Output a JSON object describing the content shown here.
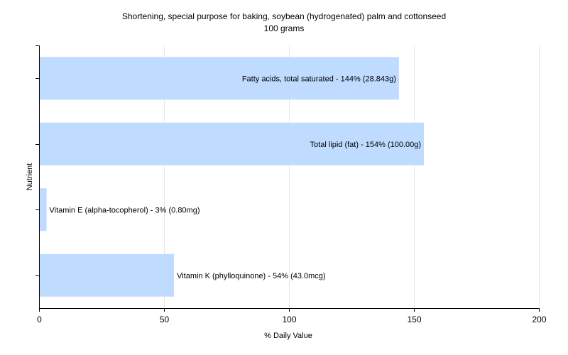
{
  "chart_data": {
    "type": "bar",
    "orientation": "horizontal",
    "title": "Shortening, special purpose for baking, soybean (hydrogenated) palm and cottonseed",
    "subtitle": "100 grams",
    "xlabel": "% Daily Value",
    "ylabel": "Nutrient",
    "xlim": [
      0,
      200
    ],
    "xticks": [
      0,
      50,
      100,
      150,
      200
    ],
    "grid": true,
    "bar_color": "#bfdbff",
    "categories": [
      "Fatty acids, total saturated",
      "Total lipid (fat)",
      "Vitamin E (alpha-tocopherol)",
      "Vitamin K (phylloquinone)"
    ],
    "values": [
      144,
      154,
      3,
      54
    ],
    "labels": [
      "Fatty acids, total saturated - 144% (28.843g)",
      "Total lipid (fat) - 154% (100.00g)",
      "Vitamin E (alpha-tocopherol) - 3% (0.80mg)",
      "Vitamin K (phylloquinone) - 54% (43.0mcg)"
    ]
  }
}
